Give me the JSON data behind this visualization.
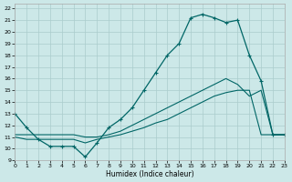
{
  "xlabel": "Humidex (Indice chaleur)",
  "bg_color": "#cce8e8",
  "grid_color": "#aacccc",
  "line_color": "#006666",
  "xlim": [
    0,
    23
  ],
  "ylim": [
    9,
    22.4
  ],
  "xticks": [
    0,
    1,
    2,
    3,
    4,
    5,
    6,
    7,
    8,
    9,
    10,
    11,
    12,
    13,
    14,
    15,
    16,
    17,
    18,
    19,
    20,
    21,
    22,
    23
  ],
  "yticks": [
    9,
    10,
    11,
    12,
    13,
    14,
    15,
    16,
    17,
    18,
    19,
    20,
    21,
    22
  ],
  "line1_x": [
    0,
    1,
    2,
    3,
    4,
    5,
    6,
    7,
    8,
    9,
    10,
    11,
    12,
    13,
    14,
    15,
    16,
    17,
    18,
    19,
    20,
    21,
    22,
    23
  ],
  "line1_y": [
    13,
    11.8,
    10.8,
    10.2,
    10.2,
    10.2,
    9.3,
    10.5,
    11.8,
    12.5,
    13.5,
    15.0,
    16.5,
    18.0,
    19.0,
    21.2,
    21.5,
    21.2,
    20.8,
    21.0,
    18.0,
    15.8,
    11.2,
    11.2
  ],
  "line2_x": [
    0,
    1,
    2,
    3,
    4,
    5,
    6,
    7,
    8,
    9,
    10,
    11,
    12,
    13,
    14,
    15,
    16,
    17,
    18,
    19,
    20,
    21,
    22,
    23
  ],
  "line2_y": [
    11.0,
    10.8,
    10.8,
    10.8,
    10.8,
    10.8,
    10.5,
    10.8,
    11.0,
    11.2,
    11.5,
    11.8,
    12.2,
    12.5,
    13.0,
    13.5,
    14.0,
    14.5,
    14.8,
    15.0,
    15.0,
    11.2,
    11.2,
    11.2
  ],
  "line3_x": [
    0,
    1,
    2,
    3,
    4,
    5,
    6,
    7,
    8,
    9,
    10,
    11,
    12,
    13,
    14,
    15,
    16,
    17,
    18,
    19,
    20,
    21,
    22,
    23
  ],
  "line3_y": [
    11.2,
    11.2,
    11.2,
    11.2,
    11.2,
    11.2,
    11.0,
    11.0,
    11.2,
    11.5,
    12.0,
    12.5,
    13.0,
    13.5,
    14.0,
    14.5,
    15.0,
    15.5,
    16.0,
    15.5,
    14.5,
    15.0,
    11.2,
    11.2
  ]
}
